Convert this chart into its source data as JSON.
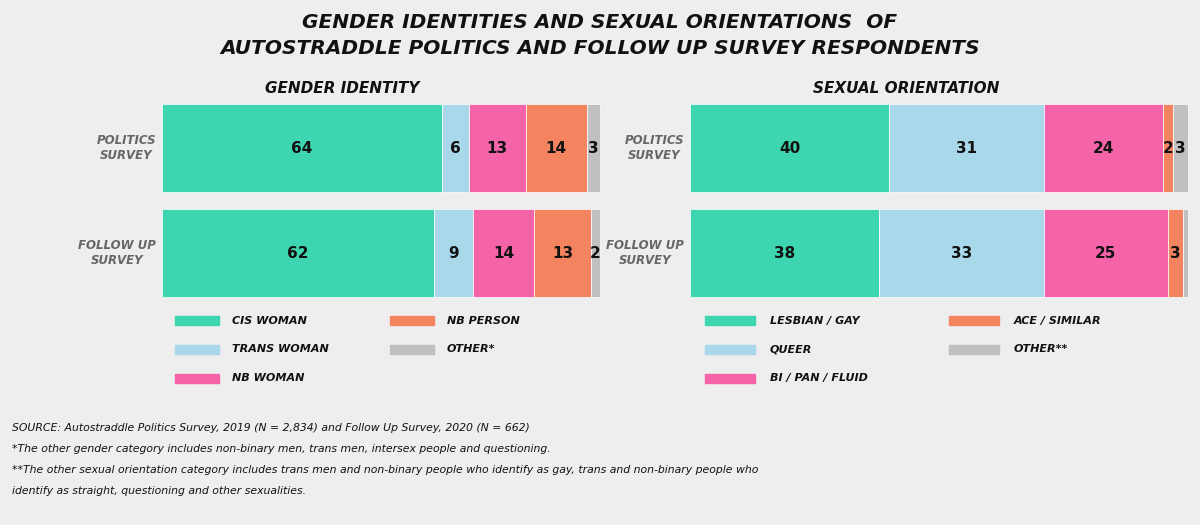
{
  "title_line1": "GENDER IDENTITIES AND SEXUAL ORIENTATIONS  OF",
  "title_line2": "AUTOSTRADDLE POLITICS AND FOLLOW UP SURVEY RESPONDENTS",
  "bg_color": "#eeeeee",
  "gender_subtitle": "GENDER IDENTITY",
  "orientation_subtitle": "SEXUAL ORIENTATION",
  "row_labels": [
    "POLITICS\nSURVEY",
    "FOLLOW UP\nSURVEY"
  ],
  "gender_data": {
    "politics": [
      64,
      6,
      13,
      14,
      3
    ],
    "followup": [
      62,
      9,
      14,
      13,
      2
    ]
  },
  "orientation_data": {
    "politics": [
      40,
      31,
      24,
      2,
      3
    ],
    "followup": [
      38,
      33,
      25,
      3,
      1
    ]
  },
  "gender_colors": [
    "#3dd6b0",
    "#a8d8ea",
    "#f564a9",
    "#f4845f",
    "#c0c0c0"
  ],
  "orientation_colors": [
    "#3dd6b0",
    "#a8d8ea",
    "#f564a9",
    "#f4845f",
    "#c0c0c0"
  ],
  "gender_labels": [
    "CIS WOMAN",
    "TRANS WOMAN",
    "NB WOMAN",
    "NB PERSON",
    "OTHER*"
  ],
  "orientation_labels": [
    "LESBIAN / GAY",
    "QUEER",
    "BI / PAN / FLUID",
    "ACE / SIMILAR",
    "OTHER**"
  ],
  "legend_bg": "#fde8c8",
  "source_text": "SOURCE: Autostraddle Politics Survey, 2019 (N = 2,834) and Follow Up Survey, 2020 (N = 662)",
  "footnote1": "*The other gender category includes non-binary men, trans men, intersex people and questioning.",
  "footnote2": "**The other sexual orientation category includes trans men and non-binary people who identify as gay, trans and non-binary people who",
  "footnote3": "identify as straight, questioning and other sexualities."
}
